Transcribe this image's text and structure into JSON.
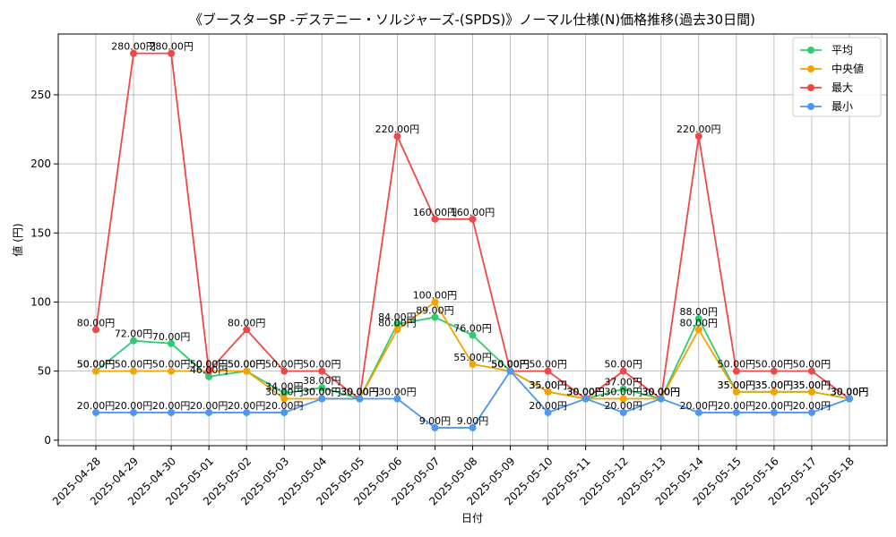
{
  "chart_data": {
    "type": "line",
    "title": "《ブースターSP -デステニー・ソルジャーズ-(SPDS)》ノーマル仕様(N)価格推移(過去30日間)",
    "xlabel": "日付",
    "ylabel": "値 (円)",
    "ylim": [
      -4,
      294
    ],
    "yticks": [
      0,
      50,
      100,
      150,
      200,
      250
    ],
    "grid": true,
    "legend_position": "top-right",
    "label_suffix": "円",
    "categories": [
      "2025-04-28",
      "2025-04-29",
      "2025-04-30",
      "2025-05-01",
      "2025-05-02",
      "2025-05-03",
      "2025-05-04",
      "2025-05-05",
      "2025-05-06",
      "2025-05-07",
      "2025-05-08",
      "2025-05-09",
      "2025-05-10",
      "2025-05-11",
      "2025-05-12",
      "2025-05-13",
      "2025-05-14",
      "2025-05-15",
      "2025-05-16",
      "2025-05-17",
      "2025-05-18"
    ],
    "series": [
      {
        "name": "平均",
        "color": "#2ecc71",
        "values": [
          50,
          72,
          70,
          46,
          50,
          34,
          38,
          30,
          84,
          89,
          76,
          50,
          35,
          30,
          37,
          30,
          88,
          35,
          35,
          35,
          30
        ]
      },
      {
        "name": "中央値",
        "color": "#f5a300",
        "values": [
          50,
          50,
          50,
          50,
          50,
          30,
          30,
          30,
          80,
          100,
          55,
          50,
          35,
          30,
          30,
          30,
          80,
          35,
          35,
          35,
          30
        ]
      },
      {
        "name": "最大",
        "color": "#f04848",
        "values": [
          80,
          280,
          280,
          50,
          80,
          50,
          50,
          30,
          220,
          160,
          160,
          50,
          50,
          30,
          50,
          30,
          220,
          50,
          50,
          50,
          30
        ]
      },
      {
        "name": "最小",
        "color": "#4d97f0",
        "values": [
          20,
          20,
          20,
          20,
          20,
          20,
          30,
          30,
          30,
          9,
          9,
          50,
          20,
          30,
          20,
          30,
          20,
          20,
          20,
          20,
          30
        ]
      }
    ]
  }
}
